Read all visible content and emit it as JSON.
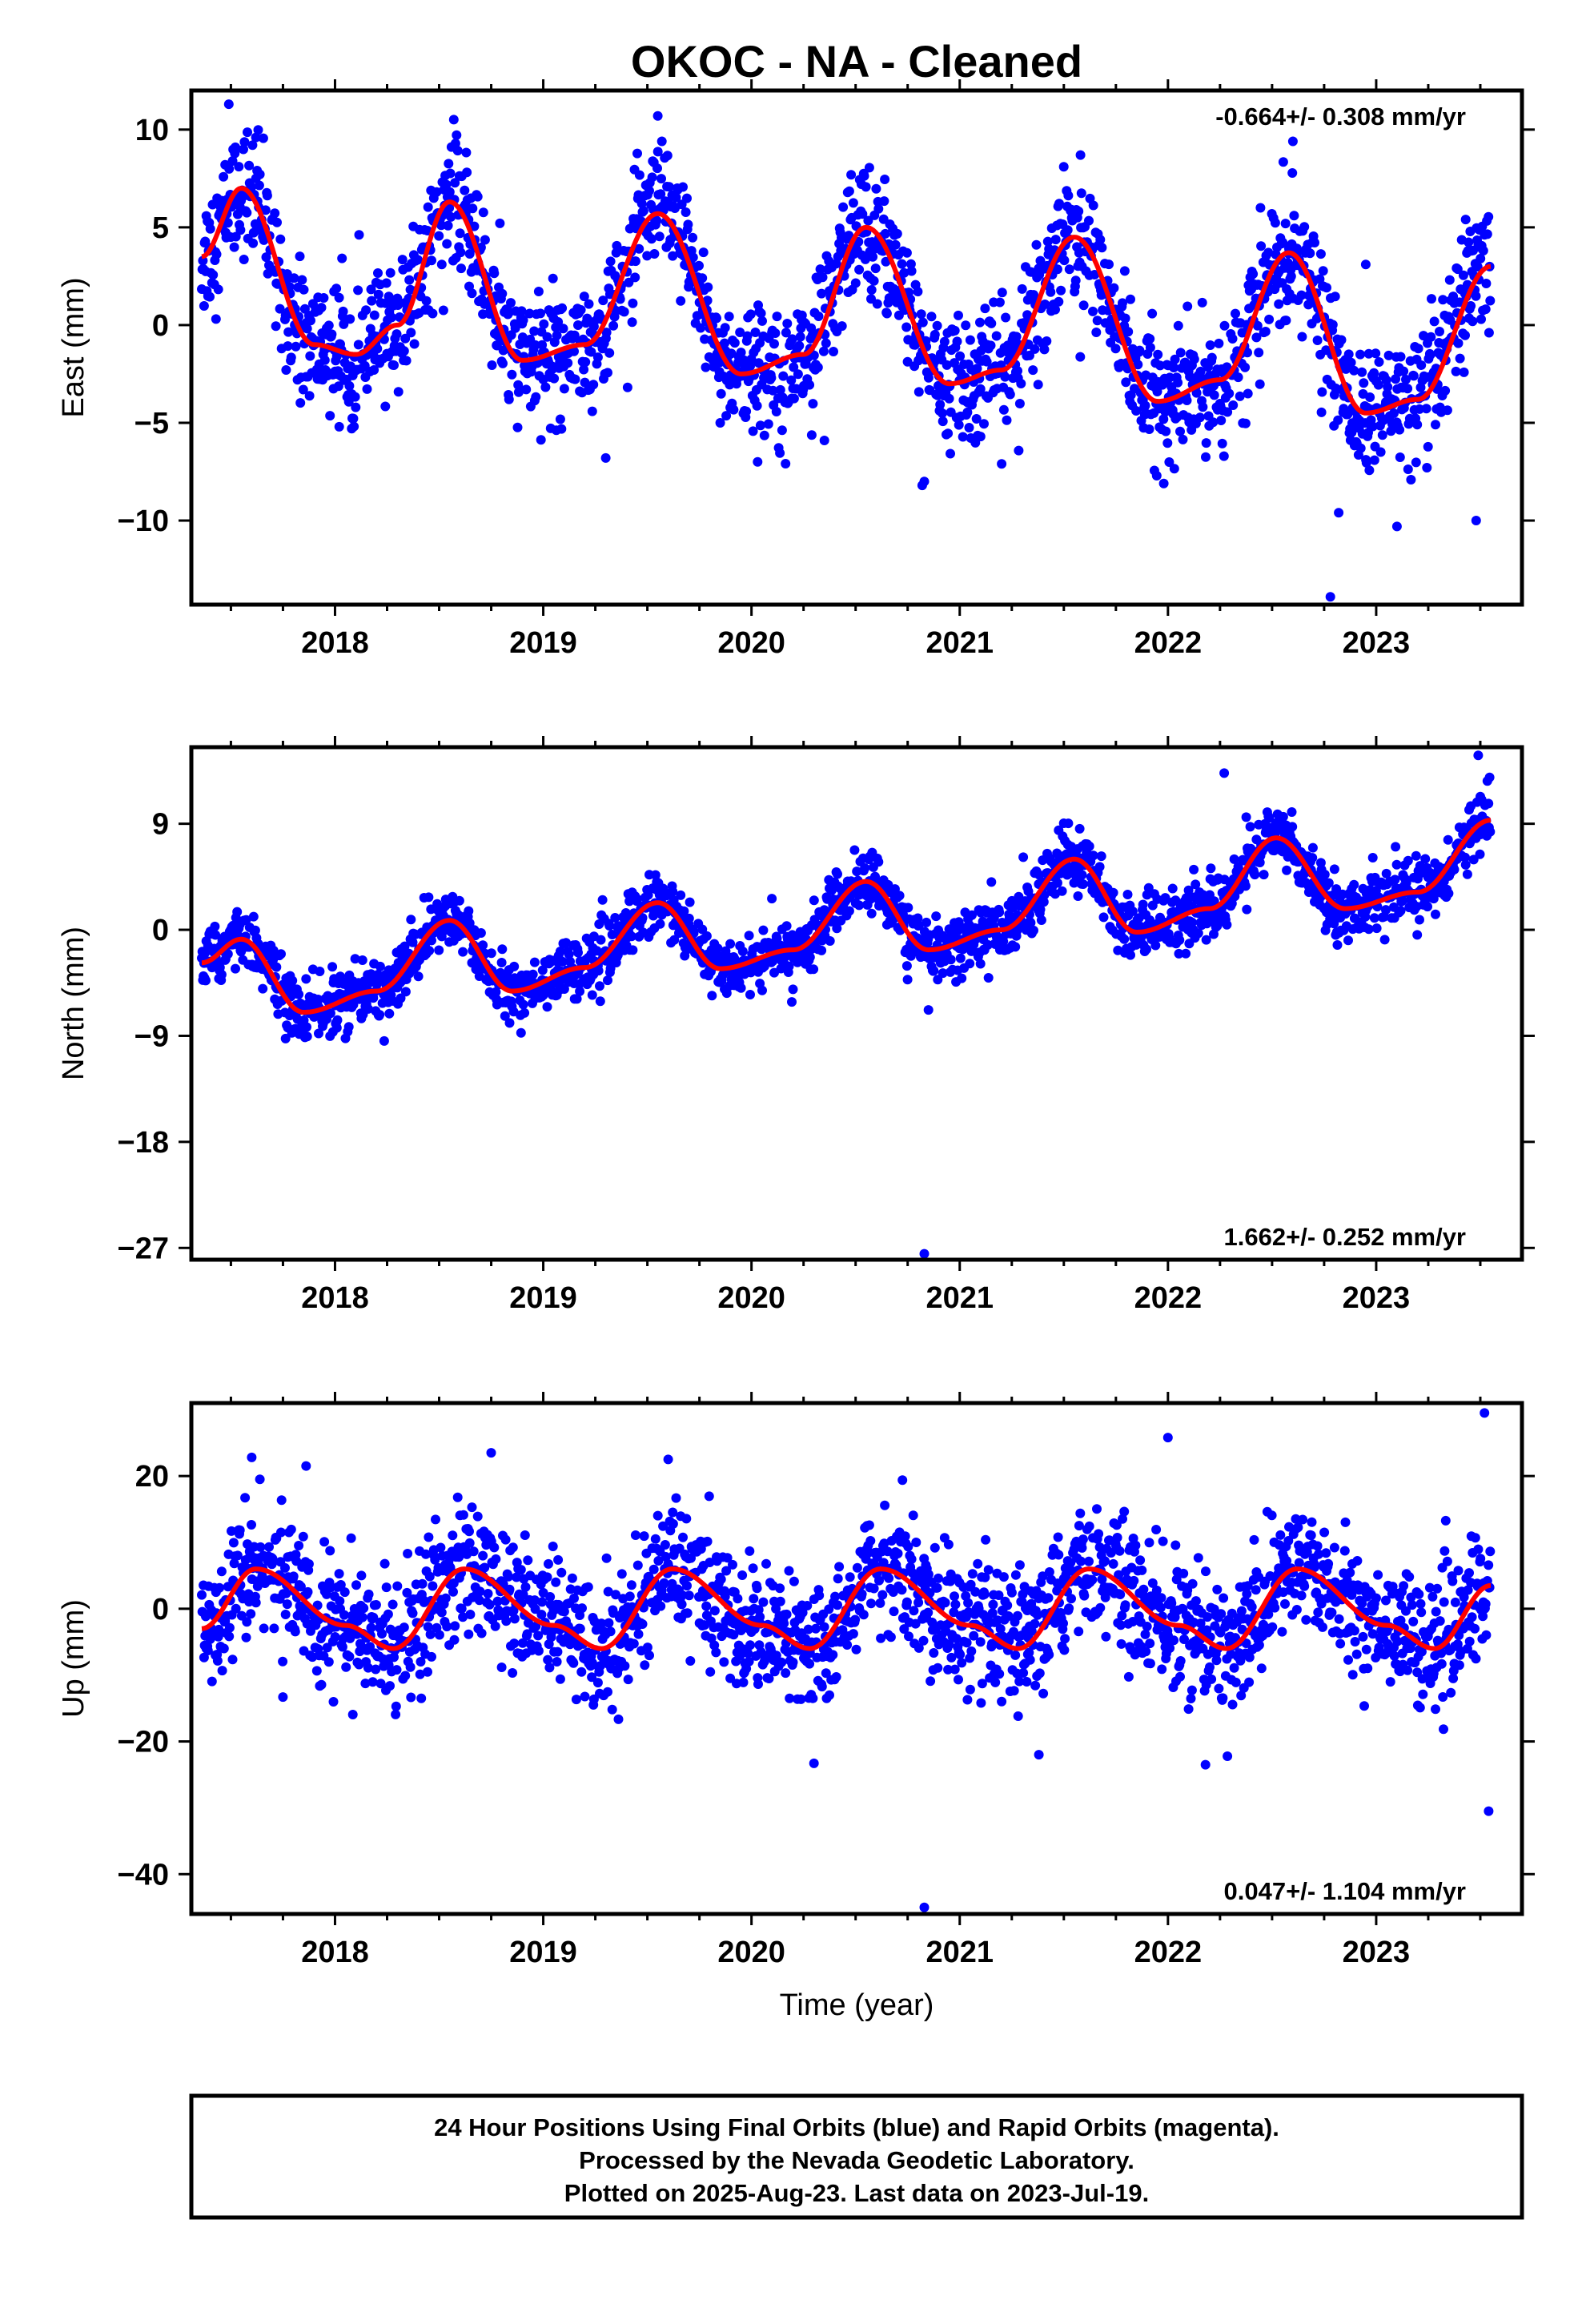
{
  "title": "OKOC  - NA - Cleaned",
  "footer": {
    "lines": [
      "24 Hour Positions Using Final Orbits (blue) and Rapid Orbits (magenta).",
      "Processed by the Nevada Geodetic Laboratory.",
      "Plotted on 2025-Aug-23. Last data on 2023-Jul-19."
    ]
  },
  "colors": {
    "points": "#0000ff",
    "model": "#ff0000",
    "frame": "#000000"
  },
  "chart_data": [
    {
      "type": "scatter",
      "ylabel": "East (mm)",
      "xlabel": "",
      "xlim": [
        2017.31,
        2023.7
      ],
      "ylim": [
        -14.3,
        12.0
      ],
      "x_ticks": [
        2018,
        2019,
        2020,
        2021,
        2022,
        2023
      ],
      "x_tick_labels": [
        "2018",
        "2019",
        "2020",
        "2021",
        "2022",
        "2023"
      ],
      "y_ticks": [
        10,
        5,
        0,
        -5,
        -10
      ],
      "y_tick_labels": [
        "10",
        "5",
        "0",
        "−5",
        "−10"
      ],
      "rate_label": "-0.664+/- 0.308 mm/yr",
      "rate_position": "top-right",
      "data_span": [
        2017.36,
        2023.55
      ],
      "model": {
        "x": [
          2017.36,
          2017.55,
          2017.9,
          2018.1,
          2018.3,
          2018.55,
          2018.9,
          2019.2,
          2019.55,
          2019.95,
          2020.25,
          2020.55,
          2020.95,
          2021.2,
          2021.55,
          2021.95,
          2022.25,
          2022.58,
          2022.95,
          2023.2,
          2023.55
        ],
        "y": [
          3.5,
          7.0,
          -1.0,
          -1.5,
          0.0,
          6.3,
          -1.8,
          -1.0,
          5.7,
          -2.5,
          -1.5,
          5.0,
          -3.0,
          -2.3,
          4.5,
          -3.9,
          -2.8,
          3.7,
          -4.5,
          -3.8,
          3.0
        ]
      },
      "scatter_spread": 1.6,
      "outliers": {
        "x": [
          2017.49,
          2017.62,
          2018.02,
          2018.08,
          2019.3,
          2019.55,
          2019.85,
          2020.35,
          2020.82,
          2020.83,
          2021.1,
          2021.58,
          2021.98,
          2022.6,
          2022.78,
          2022.82,
          2022.95,
          2023.1,
          2023.48
        ],
        "y": [
          11.3,
          9.6,
          -5.2,
          -5.3,
          -6.8,
          10.7,
          -5.0,
          -5.9,
          -8.2,
          -8.0,
          -5.7,
          8.7,
          -8.1,
          9.4,
          -13.9,
          -9.6,
          3.1,
          -10.3,
          -10.0
        ]
      }
    },
    {
      "type": "scatter",
      "ylabel": "North (mm)",
      "xlabel": "",
      "xlim": [
        2017.31,
        2023.7
      ],
      "ylim": [
        -28.0,
        15.5
      ],
      "x_ticks": [
        2018,
        2019,
        2020,
        2021,
        2022,
        2023
      ],
      "x_tick_labels": [
        "2018",
        "2019",
        "2020",
        "2021",
        "2022",
        "2023"
      ],
      "y_ticks": [
        9,
        0,
        -9,
        -18,
        -27
      ],
      "y_tick_labels": [
        "9",
        "0",
        "−9",
        "−18",
        "−27"
      ],
      "rate_label": "1.662+/- 0.252 mm/yr",
      "rate_position": "bottom-right",
      "data_span": [
        2017.36,
        2023.55
      ],
      "model": {
        "x": [
          2017.36,
          2017.55,
          2017.85,
          2018.2,
          2018.55,
          2018.85,
          2019.2,
          2019.55,
          2019.85,
          2020.2,
          2020.55,
          2020.85,
          2021.2,
          2021.55,
          2021.85,
          2022.2,
          2022.52,
          2022.85,
          2023.2,
          2023.55
        ],
        "y": [
          -2.8,
          -0.8,
          -7.0,
          -5.2,
          0.8,
          -5.2,
          -3.2,
          2.3,
          -3.3,
          -1.7,
          4.1,
          -1.7,
          0.0,
          6.0,
          -0.2,
          1.8,
          7.8,
          1.8,
          3.2,
          9.3
        ]
      },
      "scatter_spread": 1.3,
      "outliers": {
        "x": [
          2020.83,
          2020.85,
          2022.27,
          2023.49,
          2023.5
        ],
        "y": [
          -27.5,
          -6.8,
          13.3,
          14.8,
          11.3
        ]
      }
    },
    {
      "type": "scatter",
      "ylabel": "Up (mm)",
      "xlabel": "Time (year)",
      "xlim": [
        2017.31,
        2023.7
      ],
      "ylim": [
        -46.0,
        31.0
      ],
      "x_ticks": [
        2018,
        2019,
        2020,
        2021,
        2022,
        2023
      ],
      "x_tick_labels": [
        "2018",
        "2019",
        "2020",
        "2021",
        "2022",
        "2023"
      ],
      "y_ticks": [
        20,
        0,
        -20,
        -40
      ],
      "y_tick_labels": [
        "20",
        "0",
        "−20",
        "−40"
      ],
      "rate_label": "0.047+/- 1.104 mm/yr",
      "rate_position": "bottom-right",
      "data_span": [
        2017.36,
        2023.55
      ],
      "model": {
        "x": [
          2017.36,
          2017.62,
          2018.05,
          2018.28,
          2018.62,
          2019.05,
          2019.28,
          2019.62,
          2020.05,
          2020.28,
          2020.62,
          2021.05,
          2021.28,
          2021.62,
          2022.05,
          2022.28,
          2022.62,
          2023.05,
          2023.28,
          2023.55
        ],
        "y": [
          -3.0,
          6.0,
          -2.5,
          -6.0,
          6.0,
          -2.5,
          -6.0,
          6.0,
          -2.5,
          -6.0,
          6.0,
          -2.5,
          -6.0,
          6.0,
          -2.5,
          -6.0,
          6.0,
          -2.5,
          -6.0,
          3.5
        ]
      },
      "scatter_spread": 4.8,
      "outliers": {
        "x": [
          2017.6,
          2017.75,
          2018.75,
          2019.6,
          2020.3,
          2020.83,
          2021.38,
          2022.0,
          2022.18,
          2023.52,
          2023.54
        ],
        "y": [
          22.8,
          -13.3,
          23.5,
          22.5,
          -23.3,
          -45.0,
          -22.0,
          25.8,
          -23.5,
          29.5,
          -30.5
        ]
      }
    }
  ]
}
